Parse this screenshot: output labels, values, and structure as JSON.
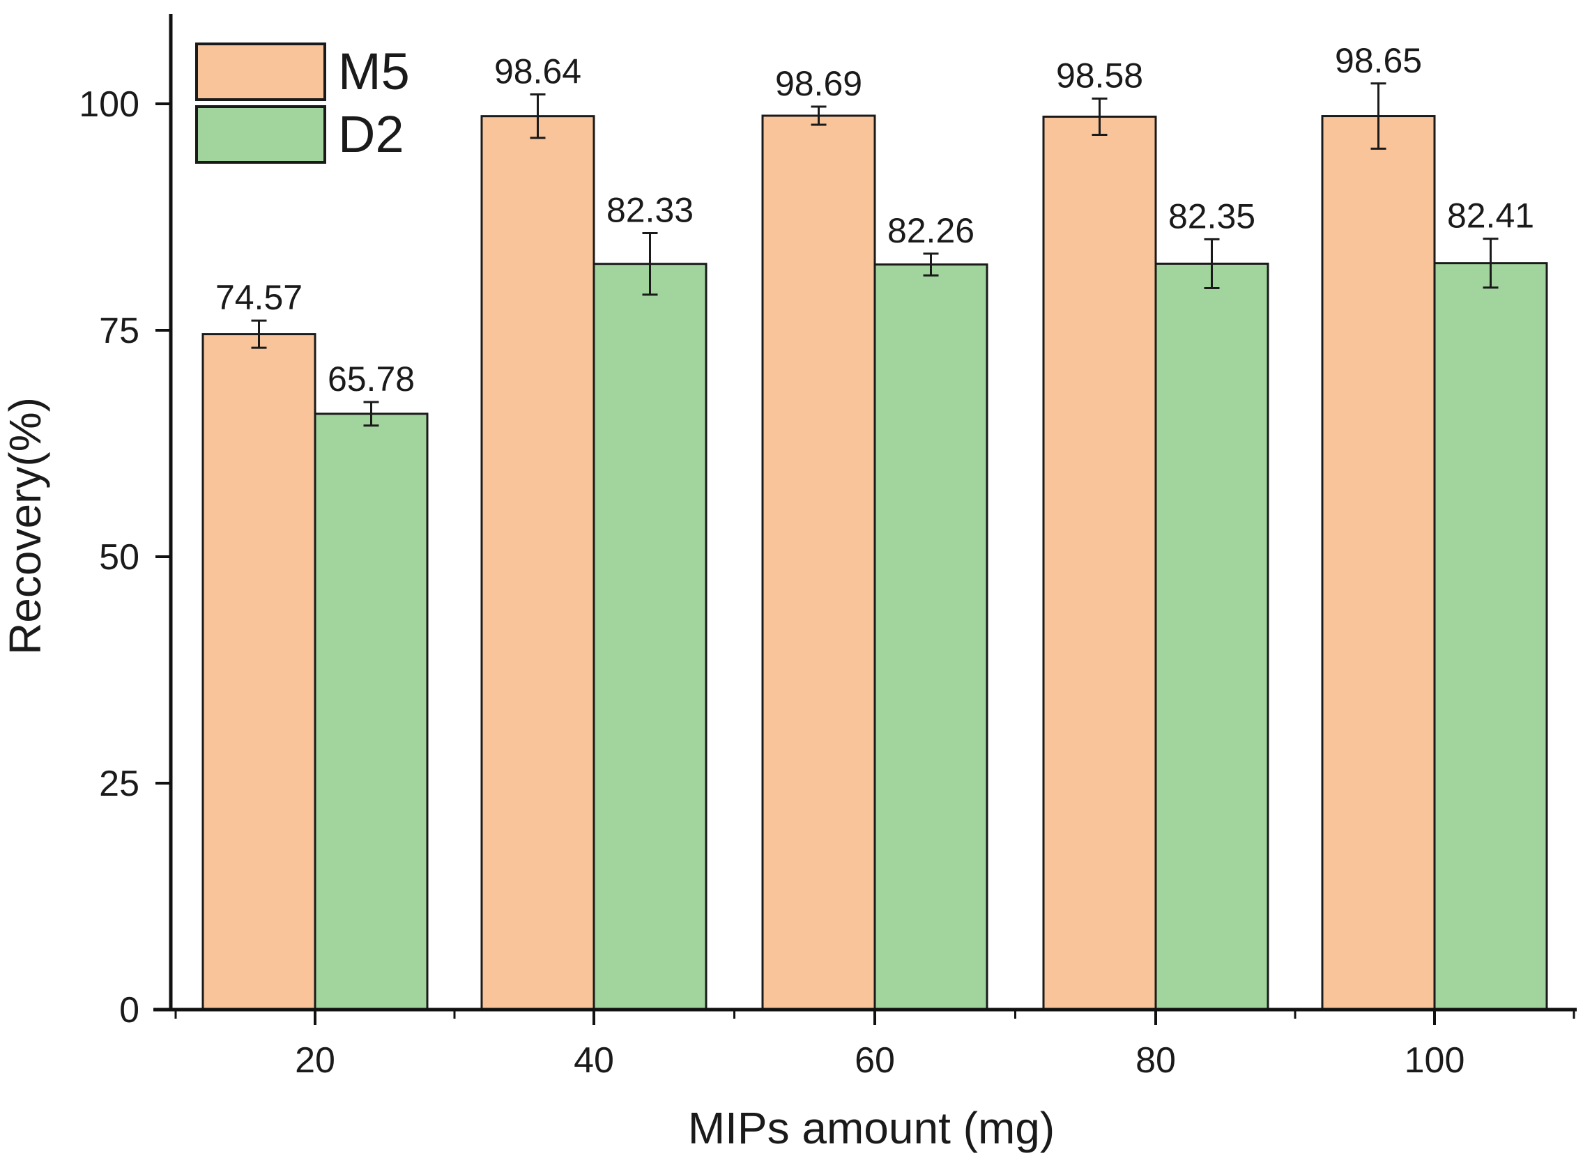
{
  "chart_data": {
    "type": "bar",
    "categories": [
      "20",
      "40",
      "60",
      "80",
      "100"
    ],
    "series": [
      {
        "name": "M5",
        "color": "#f9c49a",
        "values": [
          74.57,
          98.64,
          98.69,
          98.58,
          98.65
        ],
        "errors": [
          1.5,
          2.4,
          1.0,
          2.0,
          3.6
        ],
        "labels": [
          "74.57",
          "98.64",
          "98.69",
          "98.58",
          "98.65"
        ]
      },
      {
        "name": "D2",
        "color": "#a2d59e",
        "values": [
          65.78,
          82.33,
          82.26,
          82.35,
          82.41
        ],
        "errors": [
          1.3,
          3.4,
          1.2,
          2.7,
          2.7
        ],
        "labels": [
          "65.78",
          "82.33",
          "82.26",
          "82.35",
          "82.41"
        ]
      }
    ],
    "title": "",
    "xlabel": "MIPs amount (mg)",
    "ylabel": "Recovery(%)",
    "ylim": [
      0,
      109
    ],
    "yticks": [
      0,
      25,
      50,
      75,
      100
    ],
    "ytick_labels": [
      "0",
      "25",
      "50",
      "75",
      "100"
    ],
    "legend_position": "top-left",
    "grid": false
  }
}
